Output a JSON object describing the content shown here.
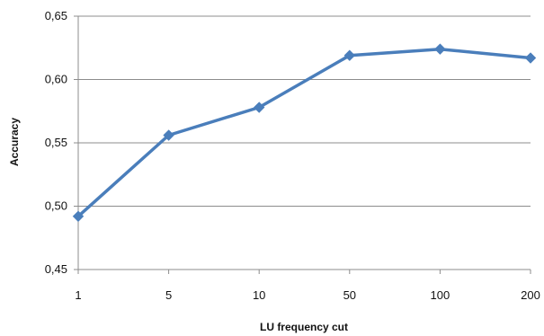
{
  "chart_data": {
    "type": "line",
    "xlabel": "LU frequency cut",
    "ylabel": "Accuracy",
    "categories": [
      "1",
      "5",
      "10",
      "50",
      "100",
      "200"
    ],
    "series": [
      {
        "values": [
          0.492,
          0.556,
          0.578,
          0.619,
          0.624,
          0.617
        ]
      }
    ],
    "ylim": [
      0.45,
      0.65
    ],
    "yticks": [
      0.45,
      0.5,
      0.55,
      0.6,
      0.65
    ],
    "ytick_labels": [
      "0,45",
      "0,50",
      "0,55",
      "0,60",
      "0,65"
    ],
    "grid": "horizontal",
    "legend": "none",
    "colors": {
      "series": "#4a7ebb",
      "grid": "#8c8c8c",
      "axis": "#8c8c8c",
      "text": "#111111"
    },
    "marker": "diamond"
  }
}
